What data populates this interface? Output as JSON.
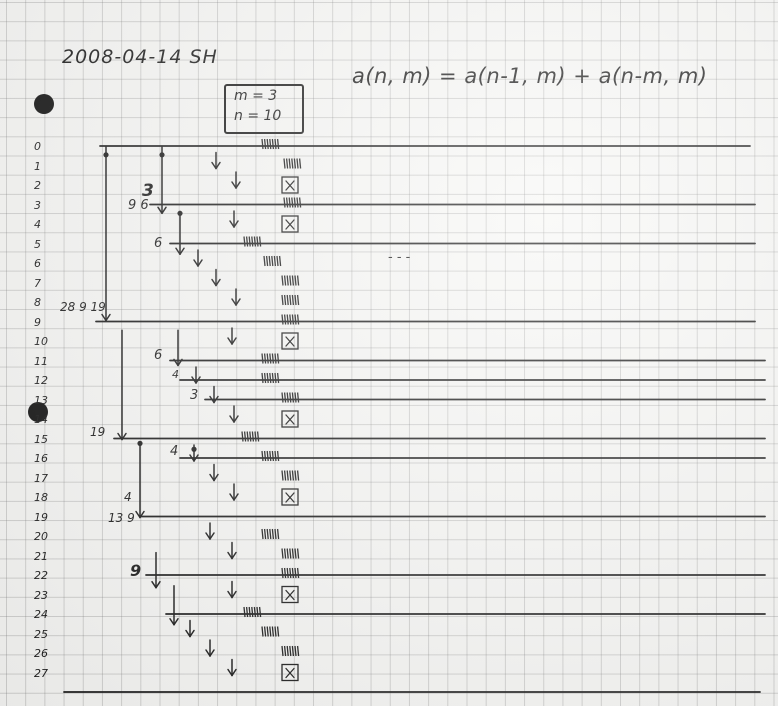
{
  "header": {
    "date": "2008-04-14 SH",
    "formula": "a(n, m) = a(n-1, m) + a(n-m, m)",
    "param_m": "m = 3",
    "param_n": "n = 10"
  },
  "rows": [
    "0",
    "1",
    "2",
    "3",
    "4",
    "5",
    "6",
    "7",
    "8",
    "9",
    "10",
    "11",
    "12",
    "13",
    "14",
    "15",
    "16",
    "17",
    "18",
    "19",
    "20",
    "21",
    "22",
    "23",
    "24",
    "25",
    "26",
    "27"
  ],
  "annotations": {
    "a3": "3",
    "a96": "9 6",
    "a6": "6",
    "a2819": "28 9 19",
    "a6b": "6",
    "a4": "4",
    "a3b": "3",
    "a19": "19",
    "a4b": "4",
    "a4c": "4",
    "a139": "13 9",
    "a9": "9"
  },
  "dash_mark": "- - -"
}
